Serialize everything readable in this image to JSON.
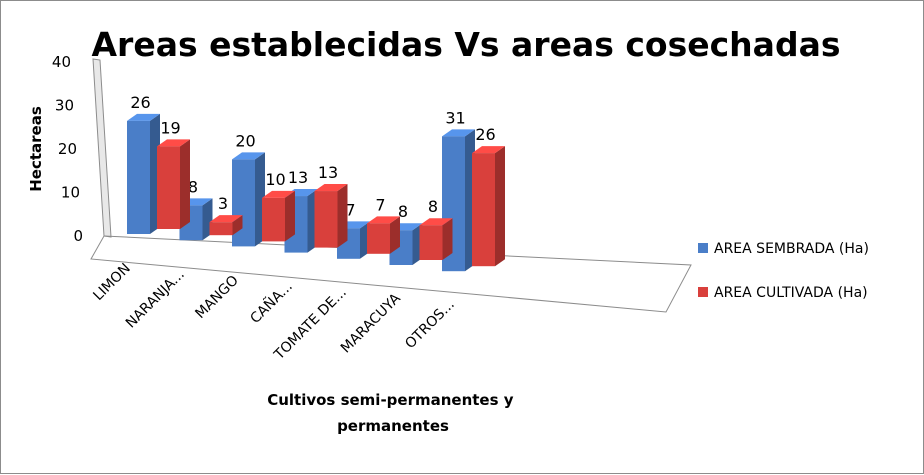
{
  "chart_data": {
    "type": "bar",
    "title": "Areas establecidas Vs areas cosechadas",
    "xlabel": "Cultivos semi-permanentes y permanentes",
    "ylabel": "Hectareas",
    "ylim": [
      0,
      40
    ],
    "yticks": [
      0,
      10,
      20,
      30,
      40
    ],
    "categories": [
      "LIMON",
      "NARANJA...",
      "MANGO",
      "CAÑA...",
      "TOMATE DE...",
      "MARACUYA",
      "OTROS..."
    ],
    "series": [
      {
        "name": "AREA SEMBRADA (Ha)",
        "color": "#4a7ec8",
        "values": [
          26,
          8,
          20,
          13,
          7,
          8,
          31
        ]
      },
      {
        "name": "AREA CULTIVADA (Ha)",
        "color": "#d9403c",
        "values": [
          19,
          3,
          10,
          13,
          7,
          8,
          26
        ]
      }
    ],
    "legend": "right",
    "grid": false,
    "perspective": "3d"
  }
}
